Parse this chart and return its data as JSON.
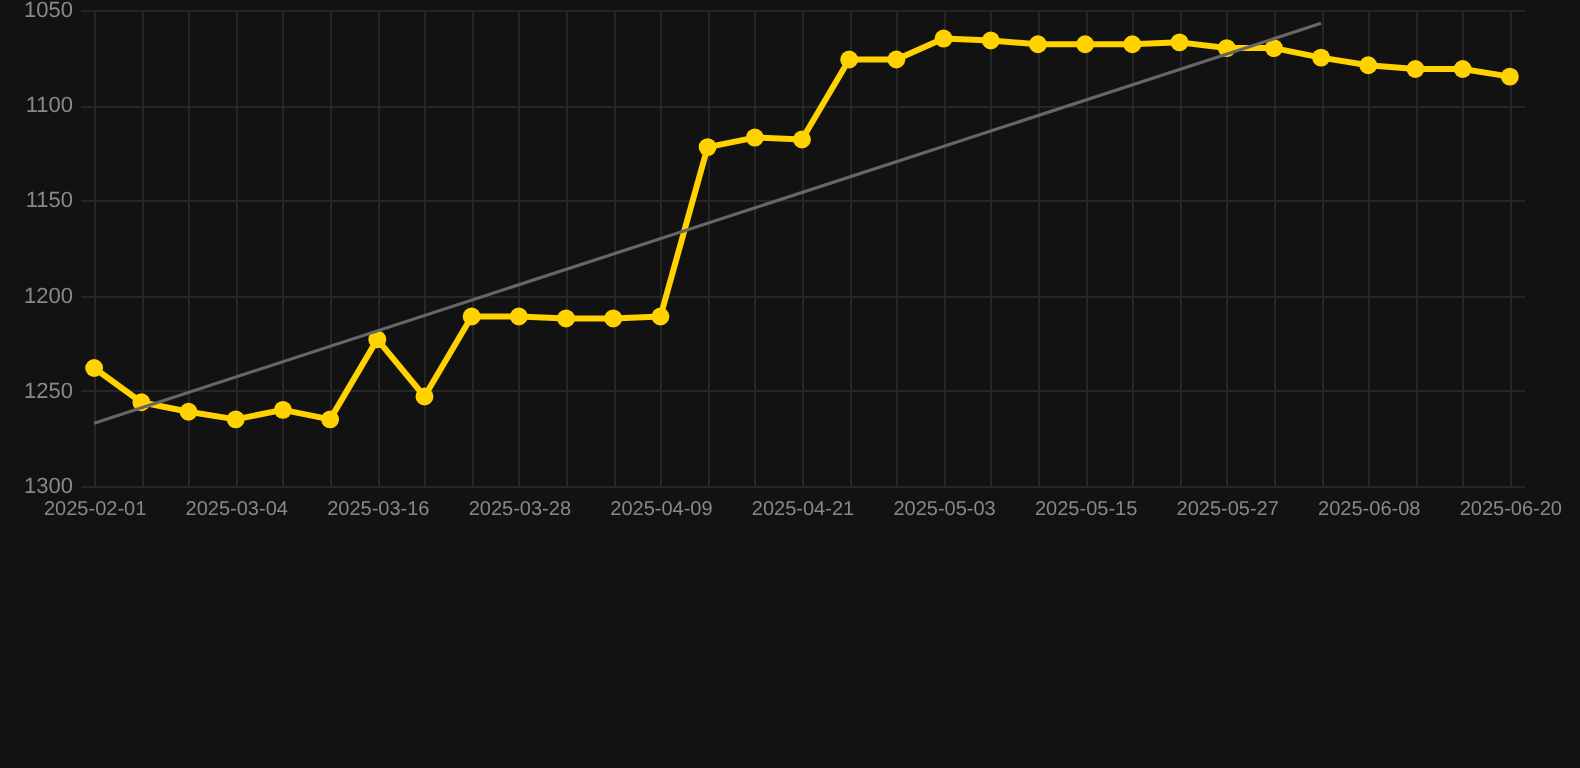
{
  "chart_data": {
    "type": "line",
    "categories": [
      "2025-02-01",
      null,
      null,
      "2025-03-04",
      null,
      null,
      "2025-03-16",
      null,
      null,
      "2025-03-28",
      null,
      null,
      "2025-04-09",
      null,
      null,
      "2025-04-21",
      null,
      null,
      "2025-05-03",
      null,
      null,
      "2025-05-15",
      null,
      null,
      "2025-05-27",
      null,
      null,
      "2025-06-08",
      null,
      null,
      "2025-06-20"
    ],
    "series": [
      {
        "color": "#ffd200",
        "marker": "circle",
        "values": [
          1238,
          1256,
          1261,
          1265,
          1260,
          1265,
          1223,
          1253,
          1211,
          1211,
          1212,
          1212,
          1211,
          1122,
          1117,
          1118,
          1076,
          1076,
          1065,
          1066,
          1068,
          1068,
          1068,
          1067,
          1070,
          1070,
          1075,
          1079,
          1081,
          1081,
          1085
        ]
      },
      {
        "color": "#666666",
        "marker": "none",
        "values": [
          1267,
          null,
          null,
          null,
          null,
          null,
          null,
          null,
          null,
          null,
          null,
          null,
          null,
          null,
          null,
          null,
          null,
          null,
          null,
          null,
          null,
          null,
          null,
          null,
          null,
          null,
          1057,
          null,
          null,
          null,
          null
        ]
      }
    ],
    "ylim": [
      1300,
      1050
    ],
    "yticks": [
      1050,
      1100,
      1150,
      1200,
      1250,
      1300
    ],
    "grid": true
  }
}
